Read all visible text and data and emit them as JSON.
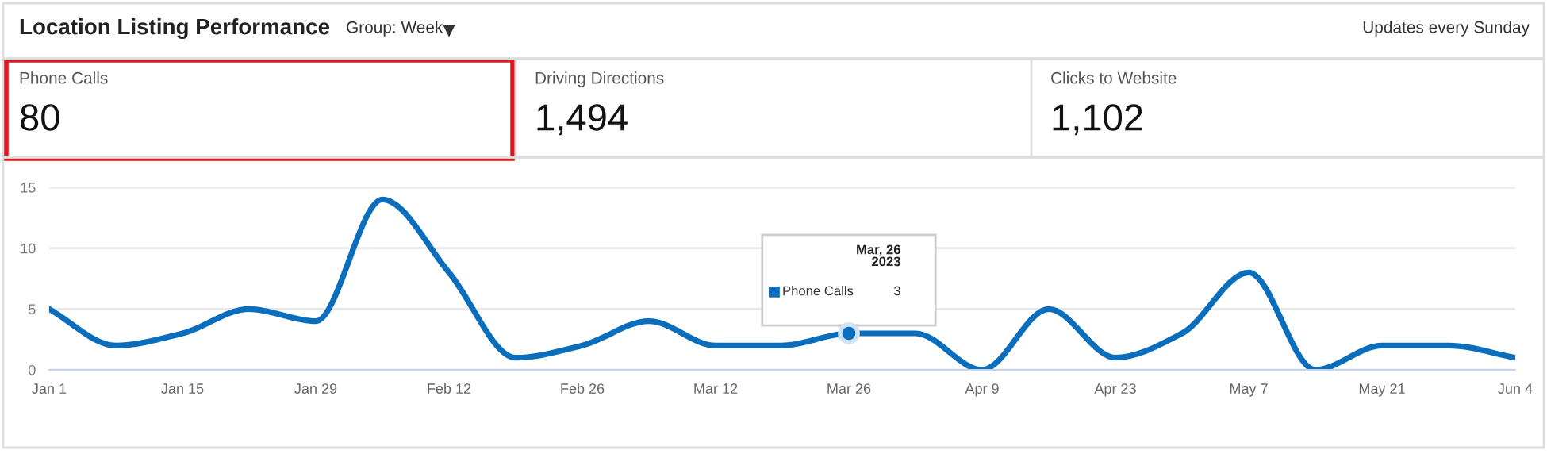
{
  "chart_data": [
    {
      "type": "other",
      "title": "Location Listing Performance",
      "annotations": [
        "Group: Week",
        "Updates every Sunday",
        "Phone Calls",
        "80",
        "Driving Directions",
        "1,494",
        "Clicks to Website",
        "1,102"
      ]
    },
    {
      "type": "line",
      "categories": [
        "Jan 1",
        null,
        "Jan 15",
        null,
        "Jan 29",
        null,
        "Feb 12",
        null,
        "Feb 26",
        null,
        "Mar 12",
        null,
        "Mar 26",
        null,
        "Apr 9",
        null,
        "Apr 23",
        null,
        "May 7",
        null,
        "May 21",
        null,
        "Jun 4"
      ],
      "series": [
        {
          "name": "Phone Calls",
          "color": "#0a6ebd",
          "values": [
            5,
            2,
            3,
            5,
            4,
            14,
            8,
            1,
            2,
            4,
            2,
            2,
            3,
            3,
            0,
            5,
            1,
            3,
            8,
            0,
            2,
            2,
            1
          ]
        }
      ],
      "value_labels": [
        null,
        null,
        null,
        null,
        null,
        null,
        null,
        null,
        null,
        null,
        null,
        null,
        "3",
        null,
        null,
        null,
        null,
        null,
        null,
        null,
        null,
        null,
        null
      ],
      "ylim": [
        0,
        15
      ],
      "yticks": [
        0,
        5,
        10,
        15
      ],
      "grid": "y",
      "legend": "center",
      "marker": "none",
      "line_style": "solid",
      "annotations": [
        "Mar, 26\n2023"
      ]
    }
  ]
}
